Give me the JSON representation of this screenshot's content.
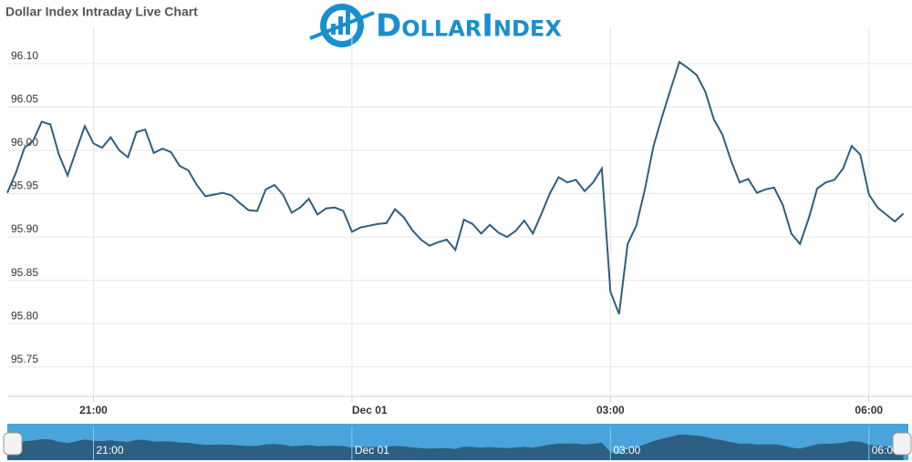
{
  "chart_data": {
    "type": "line",
    "title": "Dollar Index Intraday Live Chart",
    "logo": "DollarIndex",
    "x": [
      20.0,
      20.1,
      20.2,
      20.3,
      20.4,
      20.5,
      20.6,
      20.7,
      20.8,
      20.9,
      21.0,
      21.1,
      21.2,
      21.3,
      21.4,
      21.5,
      21.6,
      21.7,
      21.8,
      21.9,
      22.0,
      22.1,
      22.2,
      22.3,
      22.4,
      22.5,
      22.6,
      22.7,
      22.8,
      22.9,
      23.0,
      23.1,
      23.2,
      23.3,
      23.4,
      23.5,
      23.6,
      23.7,
      23.8,
      23.9,
      24.0,
      24.1,
      24.2,
      24.3,
      24.4,
      24.5,
      24.6,
      24.7,
      24.8,
      24.9,
      25.0,
      25.1,
      25.2,
      25.3,
      25.4,
      25.5,
      25.6,
      25.7,
      25.8,
      25.9,
      26.0,
      26.1,
      26.2,
      26.3,
      26.4,
      26.5,
      26.6,
      26.7,
      26.8,
      26.9,
      27.0,
      27.1,
      27.2,
      27.3,
      27.4,
      27.5,
      27.6,
      27.7,
      27.8,
      27.9,
      28.0,
      28.1,
      28.2,
      28.3,
      28.4,
      28.5,
      28.6,
      28.7,
      28.8,
      28.9,
      29.0,
      29.1,
      29.2,
      29.3,
      29.4,
      29.5,
      29.6,
      29.7,
      29.8,
      29.9,
      30.0,
      30.1,
      30.2,
      30.3,
      30.4
    ],
    "series": [
      {
        "name": "Dollar Index",
        "color": "#2f5f7e",
        "values": [
          95.951,
          95.974,
          96.003,
          96.011,
          96.033,
          96.03,
          95.995,
          95.971,
          96.0,
          96.028,
          96.008,
          96.003,
          96.015,
          96.0,
          95.992,
          96.021,
          96.024,
          95.997,
          96.002,
          95.998,
          95.982,
          95.977,
          95.96,
          95.947,
          95.949,
          95.951,
          95.948,
          95.939,
          95.931,
          95.93,
          95.955,
          95.96,
          95.949,
          95.928,
          95.934,
          95.944,
          95.926,
          95.933,
          95.934,
          95.93,
          95.906,
          95.911,
          95.913,
          95.915,
          95.916,
          95.932,
          95.923,
          95.908,
          95.897,
          95.89,
          95.894,
          95.897,
          95.885,
          95.92,
          95.915,
          95.904,
          95.914,
          95.905,
          95.9,
          95.907,
          95.919,
          95.904,
          95.927,
          95.951,
          95.969,
          95.963,
          95.966,
          95.953,
          95.963,
          95.979,
          95.837,
          95.811,
          95.892,
          95.913,
          95.955,
          96.005,
          96.039,
          96.071,
          96.102,
          96.095,
          96.087,
          96.068,
          96.036,
          96.018,
          95.988,
          95.963,
          95.967,
          95.951,
          95.955,
          95.957,
          95.937,
          95.904,
          95.892,
          95.921,
          95.956,
          95.963,
          95.966,
          95.979,
          96.005,
          95.995,
          95.949,
          95.934,
          95.926,
          95.918,
          95.927
        ]
      }
    ],
    "xlim": [
      20.0,
      30.5
    ],
    "xticks": [
      {
        "value": 21,
        "label": "21:00"
      },
      {
        "value": 24,
        "label": "Dec 01"
      },
      {
        "value": 27,
        "label": "03:00"
      },
      {
        "value": 30,
        "label": "06:00"
      }
    ],
    "ylim": [
      95.716,
      96.142
    ],
    "yticks": [
      95.75,
      {
        "value": 95.8,
        "label": "95.80"
      },
      95.85,
      {
        "value": 95.9,
        "label": "95.90"
      },
      95.95,
      {
        "value": 96,
        "label": "96.00"
      },
      96.05,
      {
        "value": 96.1,
        "label": "96.10"
      }
    ],
    "grid": true
  }
}
